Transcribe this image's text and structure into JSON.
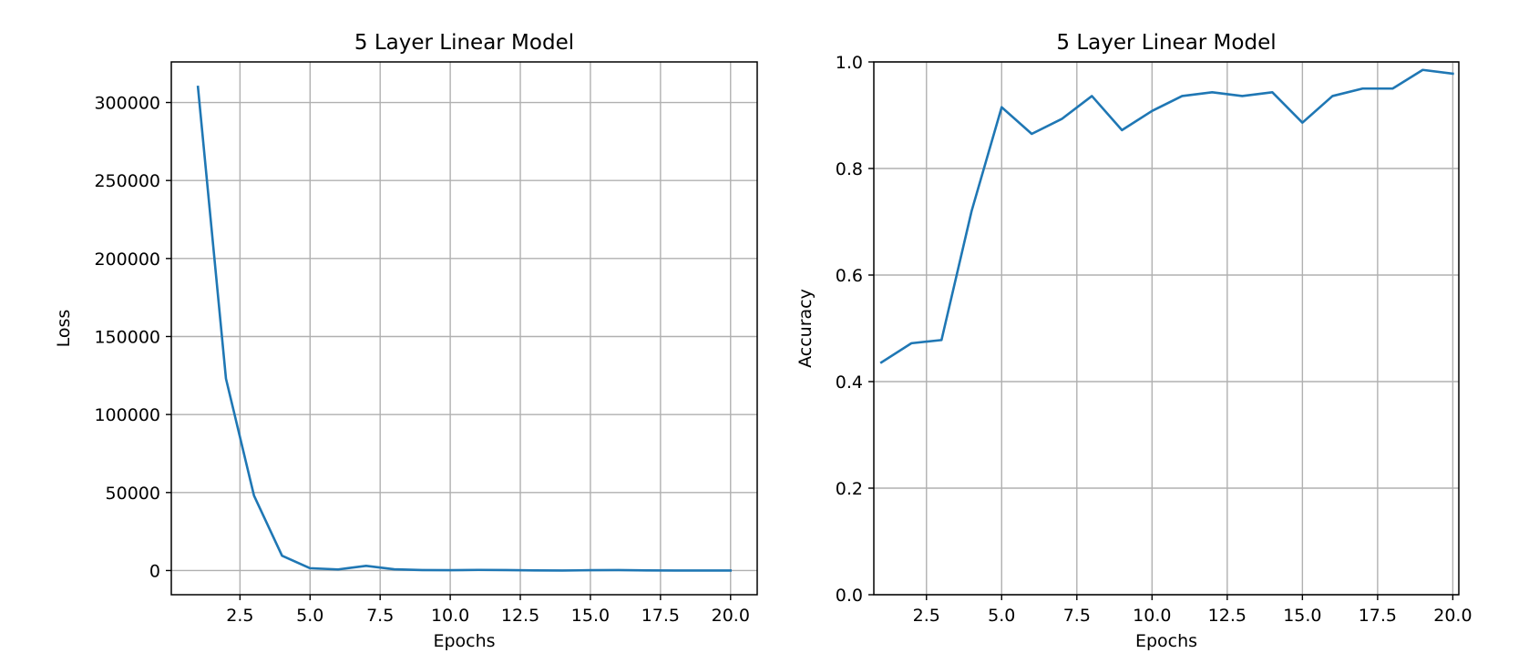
{
  "chart_data": [
    {
      "type": "line",
      "title": "5 Layer Linear Model",
      "xlabel": "Epochs",
      "ylabel": "Loss",
      "xlim": [
        0.05,
        20.95
      ],
      "ylim": [
        -15500,
        326000
      ],
      "grid": true,
      "color": "#1f77b4",
      "x_ticks": [
        2.5,
        5.0,
        7.5,
        10.0,
        12.5,
        15.0,
        17.5,
        20.0
      ],
      "x_tick_labels": [
        "2.5",
        "5.0",
        "7.5",
        "10.0",
        "12.5",
        "15.0",
        "17.5",
        "20.0"
      ],
      "y_ticks": [
        0,
        50000,
        100000,
        150000,
        200000,
        250000,
        300000
      ],
      "y_tick_labels": [
        "0",
        "50000",
        "100000",
        "150000",
        "200000",
        "250000",
        "300000"
      ],
      "x": [
        1,
        2,
        3,
        4,
        5,
        6,
        7,
        8,
        9,
        10,
        11,
        12,
        13,
        14,
        15,
        16,
        17,
        18,
        19,
        20
      ],
      "y": [
        310000,
        123000,
        48000,
        9500,
        1500,
        700,
        3000,
        800,
        300,
        200,
        400,
        300,
        100,
        0,
        200,
        300,
        100,
        0,
        0,
        0
      ]
    },
    {
      "type": "line",
      "title": "5 Layer Linear Model",
      "xlabel": "Epochs",
      "ylabel": "Accuracy",
      "xlim": [
        0.75,
        20.2
      ],
      "ylim": [
        0.0,
        1.0
      ],
      "grid": true,
      "color": "#1f77b4",
      "x_ticks": [
        2.5,
        5.0,
        7.5,
        10.0,
        12.5,
        15.0,
        17.5,
        20.0
      ],
      "x_tick_labels": [
        "2.5",
        "5.0",
        "7.5",
        "10.0",
        "12.5",
        "15.0",
        "17.5",
        "20.0"
      ],
      "y_ticks": [
        0.0,
        0.2,
        0.4,
        0.6,
        0.8,
        1.0
      ],
      "y_tick_labels": [
        "0.0",
        "0.2",
        "0.4",
        "0.6",
        "0.8",
        "1.0"
      ],
      "x": [
        1,
        2,
        3,
        4,
        5,
        6,
        7,
        8,
        9,
        10,
        11,
        12,
        13,
        14,
        15,
        16,
        17,
        18,
        19,
        20
      ],
      "y": [
        0.436,
        0.472,
        0.478,
        0.72,
        0.915,
        0.865,
        0.893,
        0.936,
        0.872,
        0.908,
        0.936,
        0.943,
        0.936,
        0.943,
        0.886,
        0.936,
        0.95,
        0.95,
        0.985,
        0.978
      ]
    }
  ]
}
